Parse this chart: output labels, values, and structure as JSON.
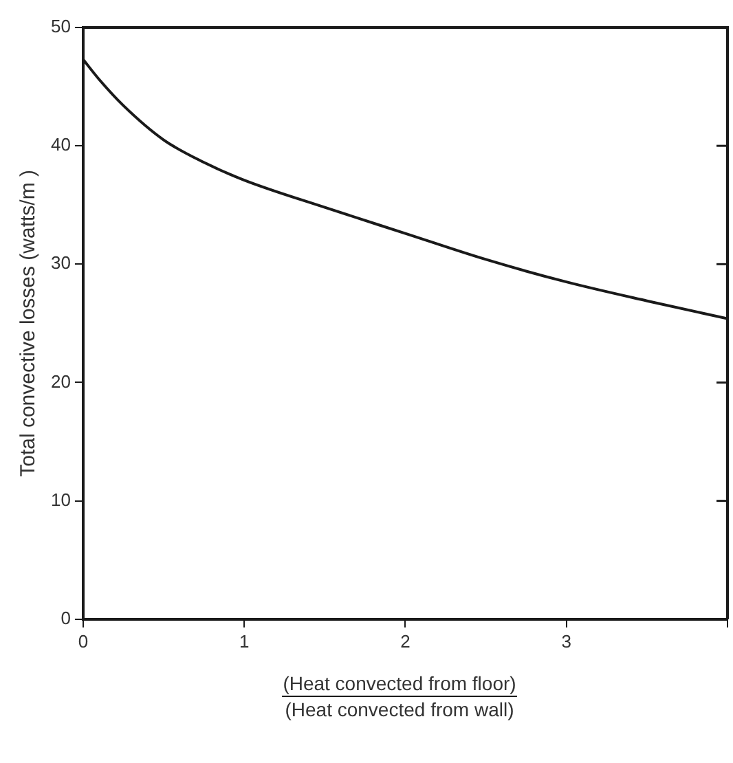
{
  "chart_data": {
    "type": "line",
    "ylabel": "Total convective losses (watts/m )",
    "xlabel": "(Heat convected from floor)\n(Heat convected from wall)",
    "x": [
      0,
      0.1,
      0.25,
      0.5,
      0.75,
      1,
      1.5,
      2,
      2.5,
      3,
      3.5,
      4
    ],
    "series": [
      {
        "color": "#1a1a1a",
        "values": [
          47.3,
          45.6,
          43.4,
          40.5,
          38.6,
          37.1,
          34.8,
          32.6,
          30.4,
          28.5,
          26.9,
          25.4
        ]
      }
    ],
    "xlim": [
      0,
      4
    ],
    "xticks": [
      0,
      1,
      2,
      3,
      {
        "value": 4,
        "label": null
      }
    ],
    "ylim": [
      0,
      50
    ],
    "yticks": [
      0,
      10,
      20,
      30,
      40,
      50
    ],
    "grid": false,
    "legend": false,
    "marker": "none",
    "line_style": "solid"
  }
}
